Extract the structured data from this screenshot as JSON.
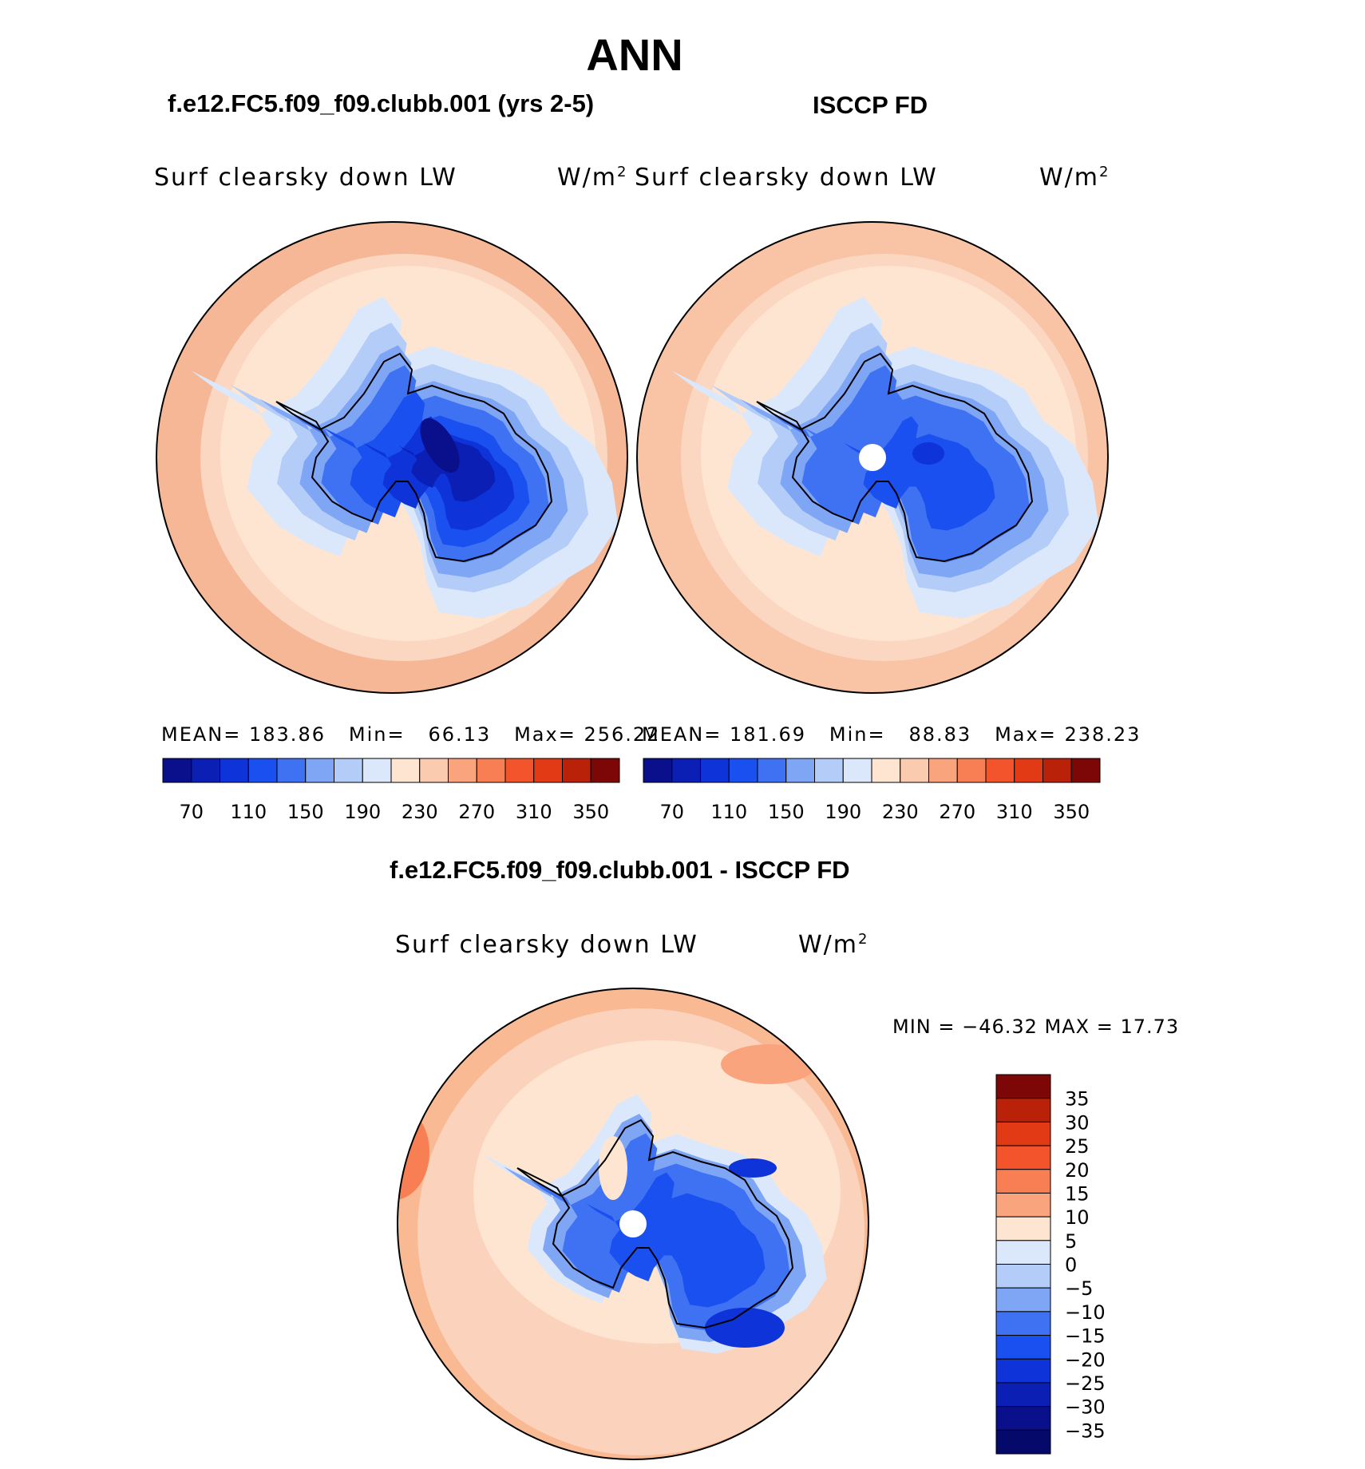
{
  "main_title": "ANN",
  "panels": [
    {
      "case": "f.e12.FC5.f09_f09.clubb.001 (yrs 2-5)",
      "variable": "Surf clearsky down LW",
      "units": "W/m",
      "units_sup": "2",
      "mean_label": "MEAN=",
      "mean": "183.86",
      "min_label": "Min=",
      "min": "66.13",
      "max_label": "Max=",
      "max": "256.22"
    },
    {
      "case": "ISCCP FD",
      "variable": "Surf clearsky down LW",
      "units": "W/m",
      "units_sup": "2",
      "mean_label": "MEAN=",
      "mean": "181.69",
      "min_label": "Min=",
      "min": "88.83",
      "max_label": "Max=",
      "max": "238.23"
    }
  ],
  "diff_panel": {
    "case": "f.e12.FC5.f09_f09.clubb.001 - ISCCP FD",
    "variable": "Surf clearsky down LW",
    "units": "W/m",
    "units_sup": "2",
    "minmax": "MIN = −46.32 MAX =   17.73"
  },
  "colorbar_top": {
    "colors": [
      "#0a0f8c",
      "#0b1fb5",
      "#0d33d9",
      "#1a4ff0",
      "#3f72f2",
      "#7fa5f5",
      "#b3cdf8",
      "#dbe8fb",
      "#fde5d2",
      "#fbcbb0",
      "#f9a47c",
      "#f77f53",
      "#f4542c",
      "#e23a14",
      "#b92108",
      "#7d0606"
    ],
    "ticks": [
      "70",
      "110",
      "150",
      "190",
      "230",
      "270",
      "310",
      "350"
    ]
  },
  "colorbar_diff": {
    "colors": [
      "#7d0606",
      "#b92108",
      "#e23a14",
      "#f4542c",
      "#f77f53",
      "#f9a47c",
      "#fde5d2",
      "#dbe8fb",
      "#b3cdf8",
      "#7fa5f5",
      "#3f72f2",
      "#1a4ff0",
      "#0d33d9",
      "#0b1fb5",
      "#0a0f8c",
      "#050a6a"
    ],
    "ticks": [
      "35",
      "30",
      "25",
      "20",
      "15",
      "10",
      "5",
      "0",
      "−5",
      "−10",
      "−15",
      "−20",
      "−25",
      "−30",
      "−35"
    ]
  },
  "map_colors": {
    "ocean_outer": "#f5b796",
    "ocean_mid": "#fbd7c2",
    "ocean_light": "#fde5d2",
    "sea_ice": "#dbe8fb",
    "near_coast": "#b3cdf8",
    "coast": "#7fa5f5",
    "land1": "#3f72f2",
    "land2": "#1a4ff0",
    "land3": "#0d33d9",
    "land4": "#0b1fb5",
    "land5": "#0a0f8c"
  }
}
